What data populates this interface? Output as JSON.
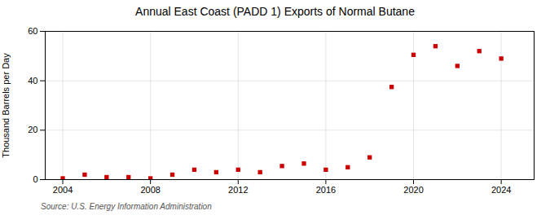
{
  "chart_data": {
    "type": "scatter",
    "title": "Annual East Coast (PADD 1) Exports of Normal Butane",
    "ylabel": "Thousand Barrels per Day",
    "source": "Source: U.S. Energy Information Administration",
    "x": [
      2004,
      2005,
      2006,
      2007,
      2008,
      2009,
      2010,
      2011,
      2012,
      2013,
      2014,
      2015,
      2016,
      2017,
      2018,
      2019,
      2020,
      2021,
      2022,
      2023,
      2024
    ],
    "values": [
      0.5,
      2.0,
      1.0,
      1.0,
      0.5,
      2.0,
      4.0,
      3.0,
      4.0,
      3.0,
      5.5,
      6.5,
      4.0,
      5.0,
      9.0,
      37.5,
      50.5,
      54.0,
      46.0,
      52.0,
      49.0
    ],
    "color": "#cc0000",
    "marker": "square",
    "xlim": [
      2003.2,
      2025.5
    ],
    "xticks": [
      2004,
      2008,
      2012,
      2016,
      2020,
      2024
    ],
    "ylim": [
      0,
      60
    ],
    "yticks": [
      0,
      20,
      40,
      60
    ],
    "grid": true
  }
}
